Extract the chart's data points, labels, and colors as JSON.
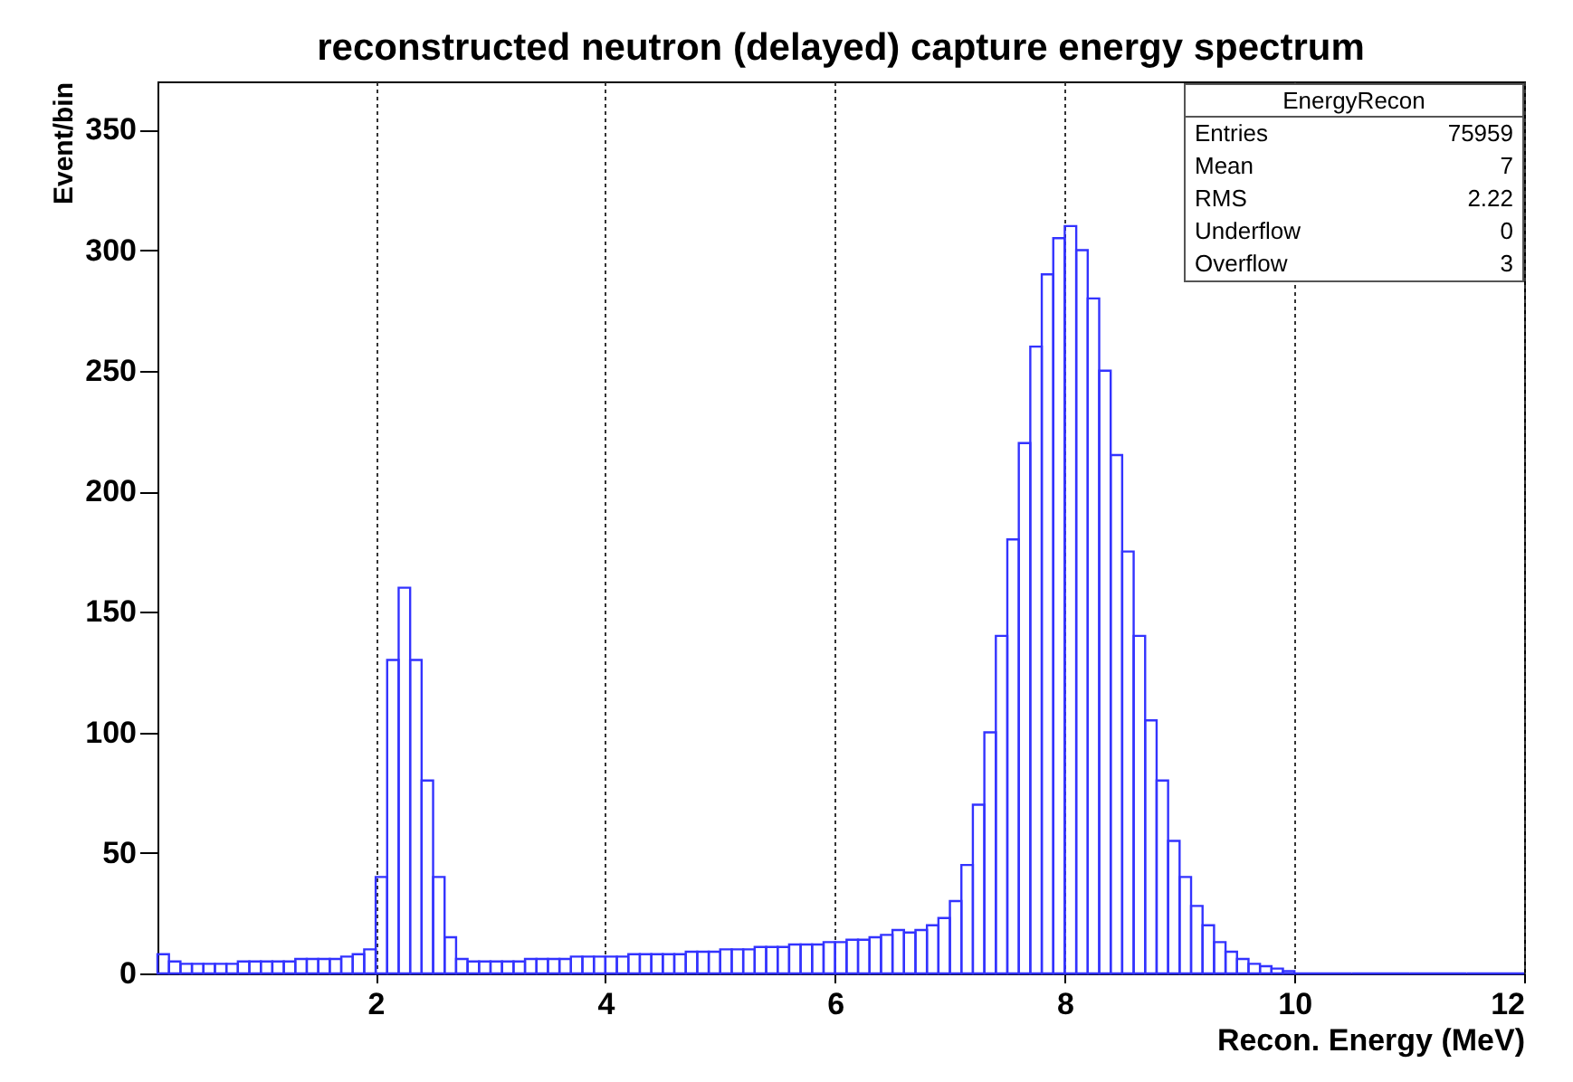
{
  "chart_data": {
    "type": "histogram",
    "title": "reconstructed neutron (delayed) capture energy spectrum",
    "xlabel": "Recon. Energy (MeV)",
    "ylabel": "Event/bin",
    "bins": [
      0.1,
      0.2,
      0.3,
      0.4,
      0.5,
      0.6,
      0.7,
      0.8,
      0.9,
      1.0,
      1.1,
      1.2,
      1.3,
      1.4,
      1.5,
      1.6,
      1.7,
      1.8,
      1.9,
      2.0,
      2.1,
      2.2,
      2.3,
      2.4,
      2.5,
      2.6,
      2.7,
      2.8,
      2.9,
      3.0,
      3.1,
      3.2,
      3.3,
      3.4,
      3.5,
      3.6,
      3.7,
      3.8,
      3.9,
      4.0,
      4.1,
      4.2,
      4.3,
      4.4,
      4.5,
      4.6,
      4.7,
      4.8,
      4.9,
      5.0,
      5.1,
      5.2,
      5.3,
      5.4,
      5.5,
      5.6,
      5.7,
      5.8,
      5.9,
      6.0,
      6.1,
      6.2,
      6.3,
      6.4,
      6.5,
      6.6,
      6.7,
      6.8,
      6.9,
      7.0,
      7.1,
      7.2,
      7.3,
      7.4,
      7.5,
      7.6,
      7.7,
      7.8,
      7.9,
      8.0,
      8.1,
      8.2,
      8.3,
      8.4,
      8.5,
      8.6,
      8.7,
      8.8,
      8.9,
      9.0,
      9.1,
      9.2,
      9.3,
      9.4,
      9.5,
      9.6,
      9.7,
      9.8,
      9.9,
      10.0,
      10.5,
      11.0,
      11.5,
      12.0
    ],
    "values": [
      8,
      5,
      4,
      4,
      4,
      4,
      4,
      5,
      5,
      5,
      5,
      5,
      6,
      6,
      6,
      6,
      7,
      8,
      10,
      40,
      130,
      160,
      130,
      80,
      40,
      15,
      6,
      5,
      5,
      5,
      5,
      5,
      6,
      6,
      6,
      6,
      7,
      7,
      7,
      7,
      7,
      8,
      8,
      8,
      8,
      8,
      9,
      9,
      9,
      10,
      10,
      10,
      11,
      11,
      11,
      12,
      12,
      12,
      13,
      13,
      14,
      14,
      15,
      16,
      18,
      17,
      18,
      20,
      23,
      30,
      45,
      70,
      100,
      140,
      180,
      220,
      260,
      290,
      305,
      310,
      300,
      280,
      250,
      215,
      175,
      140,
      105,
      80,
      55,
      40,
      28,
      20,
      13,
      9,
      6,
      4,
      3,
      2,
      1,
      0,
      0,
      0,
      0
    ],
    "color": "#3333ff",
    "xlim": [
      0.1,
      12
    ],
    "ylim": [
      0,
      370
    ],
    "xticks": [
      2,
      4,
      6,
      8,
      10,
      12
    ],
    "yticks": [
      0,
      50,
      100,
      150,
      200,
      250,
      300,
      350
    ],
    "grid": "x",
    "annotations": [
      "EnergyRecon",
      "Entries",
      "75959",
      "Mean",
      "7",
      "RMS",
      "2.22",
      "Underflow",
      "0",
      "Overflow",
      "3"
    ]
  }
}
